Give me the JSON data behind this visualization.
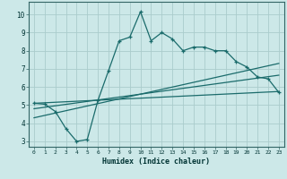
{
  "xlabel": "Humidex (Indice chaleur)",
  "ylabel": "",
  "background_color": "#cce8e8",
  "grid_color": "#aacccc",
  "line_color": "#1a6b6b",
  "xlim": [
    -0.5,
    23.5
  ],
  "ylim": [
    2.7,
    10.7
  ],
  "xticks": [
    0,
    1,
    2,
    3,
    4,
    5,
    6,
    7,
    8,
    9,
    10,
    11,
    12,
    13,
    14,
    15,
    16,
    17,
    18,
    19,
    20,
    21,
    22,
    23
  ],
  "yticks": [
    3,
    4,
    5,
    6,
    7,
    8,
    9,
    10
  ],
  "line1_x": [
    0,
    1,
    2,
    3,
    4,
    5,
    6,
    7,
    8,
    9,
    10,
    11,
    12,
    13,
    14,
    15,
    16,
    17,
    18,
    19,
    20,
    21,
    22,
    23
  ],
  "line1_y": [
    5.1,
    5.05,
    4.65,
    3.7,
    3.0,
    3.1,
    5.25,
    6.9,
    8.55,
    8.75,
    10.15,
    8.55,
    9.0,
    8.65,
    8.0,
    8.2,
    8.2,
    8.0,
    8.0,
    7.4,
    7.1,
    6.55,
    6.45,
    5.7
  ],
  "line2_x": [
    0,
    23
  ],
  "line2_y": [
    5.1,
    5.75
  ],
  "line3_x": [
    0,
    23
  ],
  "line3_y": [
    4.8,
    6.65
  ],
  "line4_x": [
    0,
    23
  ],
  "line4_y": [
    4.3,
    7.3
  ]
}
